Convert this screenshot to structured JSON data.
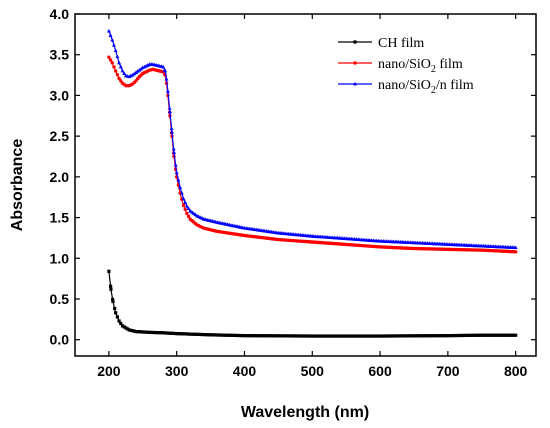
{
  "chart_data": {
    "type": "line",
    "xlabel": "Wavelength (nm)",
    "ylabel": "Absorbance",
    "xlim": [
      150,
      830
    ],
    "ylim": [
      -0.2,
      4.0
    ],
    "xticks": [
      200,
      300,
      400,
      500,
      600,
      700,
      800
    ],
    "yticks": [
      0.0,
      0.5,
      1.0,
      1.5,
      2.0,
      2.5,
      3.0,
      3.5,
      4.0
    ],
    "legend_position": "top-right",
    "grid": false,
    "series": [
      {
        "name": "CH film",
        "color": "#000000",
        "marker": "square",
        "points": [
          [
            200,
            0.84
          ],
          [
            203,
            0.62
          ],
          [
            206,
            0.47
          ],
          [
            210,
            0.33
          ],
          [
            215,
            0.23
          ],
          [
            220,
            0.17
          ],
          [
            230,
            0.12
          ],
          [
            240,
            0.1
          ],
          [
            260,
            0.09
          ],
          [
            280,
            0.085
          ],
          [
            300,
            0.075
          ],
          [
            350,
            0.06
          ],
          [
            400,
            0.05
          ],
          [
            500,
            0.045
          ],
          [
            600,
            0.045
          ],
          [
            700,
            0.05
          ],
          [
            750,
            0.055
          ],
          [
            800,
            0.055
          ]
        ]
      },
      {
        "name": "nano/SiO2 film",
        "legend_main": "nano/SiO",
        "legend_sub": "2",
        "legend_tail": " film",
        "color": "#ff0000",
        "marker": "circle",
        "points": [
          [
            200,
            3.47
          ],
          [
            205,
            3.4
          ],
          [
            210,
            3.3
          ],
          [
            215,
            3.21
          ],
          [
            220,
            3.15
          ],
          [
            225,
            3.12
          ],
          [
            230,
            3.12
          ],
          [
            235,
            3.14
          ],
          [
            240,
            3.18
          ],
          [
            245,
            3.23
          ],
          [
            250,
            3.27
          ],
          [
            255,
            3.29
          ],
          [
            260,
            3.31
          ],
          [
            265,
            3.32
          ],
          [
            270,
            3.31
          ],
          [
            275,
            3.3
          ],
          [
            280,
            3.29
          ],
          [
            283,
            3.25
          ],
          [
            285,
            3.15
          ],
          [
            287,
            3.0
          ],
          [
            290,
            2.75
          ],
          [
            293,
            2.5
          ],
          [
            296,
            2.25
          ],
          [
            300,
            2.0
          ],
          [
            305,
            1.8
          ],
          [
            310,
            1.65
          ],
          [
            315,
            1.55
          ],
          [
            320,
            1.48
          ],
          [
            330,
            1.41
          ],
          [
            340,
            1.37
          ],
          [
            360,
            1.33
          ],
          [
            400,
            1.28
          ],
          [
            450,
            1.23
          ],
          [
            500,
            1.2
          ],
          [
            550,
            1.17
          ],
          [
            600,
            1.14
          ],
          [
            650,
            1.12
          ],
          [
            700,
            1.11
          ],
          [
            750,
            1.1
          ],
          [
            800,
            1.08
          ]
        ]
      },
      {
        "name": "nano/SiO2/n film",
        "legend_main": "nano/SiO",
        "legend_sub": "2",
        "legend_tail": "/n film",
        "color": "#0000ff",
        "marker": "triangle",
        "points": [
          [
            200,
            3.79
          ],
          [
            205,
            3.68
          ],
          [
            210,
            3.55
          ],
          [
            215,
            3.4
          ],
          [
            220,
            3.3
          ],
          [
            225,
            3.24
          ],
          [
            230,
            3.23
          ],
          [
            235,
            3.25
          ],
          [
            240,
            3.28
          ],
          [
            245,
            3.31
          ],
          [
            250,
            3.34
          ],
          [
            255,
            3.36
          ],
          [
            260,
            3.38
          ],
          [
            265,
            3.38
          ],
          [
            270,
            3.37
          ],
          [
            275,
            3.36
          ],
          [
            280,
            3.35
          ],
          [
            283,
            3.3
          ],
          [
            285,
            3.2
          ],
          [
            287,
            3.05
          ],
          [
            290,
            2.8
          ],
          [
            293,
            2.55
          ],
          [
            296,
            2.3
          ],
          [
            300,
            2.05
          ],
          [
            305,
            1.87
          ],
          [
            310,
            1.73
          ],
          [
            315,
            1.64
          ],
          [
            320,
            1.58
          ],
          [
            330,
            1.52
          ],
          [
            340,
            1.48
          ],
          [
            360,
            1.44
          ],
          [
            400,
            1.37
          ],
          [
            450,
            1.31
          ],
          [
            500,
            1.27
          ],
          [
            550,
            1.24
          ],
          [
            600,
            1.21
          ],
          [
            650,
            1.19
          ],
          [
            700,
            1.17
          ],
          [
            750,
            1.15
          ],
          [
            800,
            1.13
          ]
        ]
      }
    ]
  }
}
